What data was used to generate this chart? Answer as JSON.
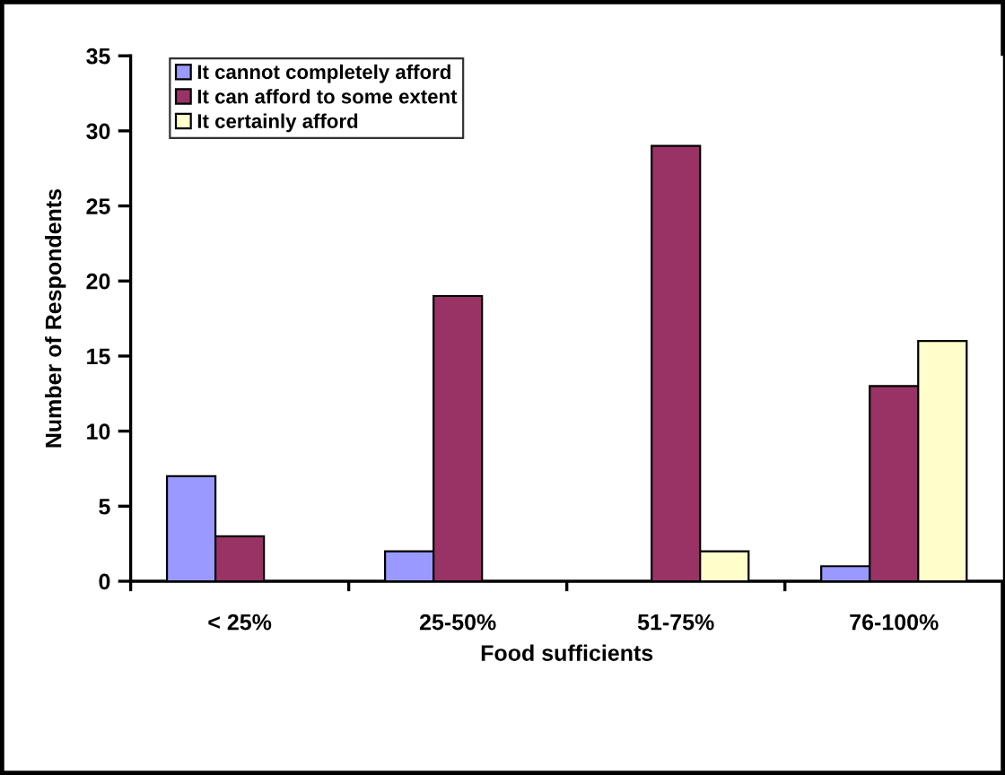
{
  "chart_data": {
    "type": "bar",
    "xlabel": "Food sufficients",
    "ylabel": "Number of Respondents",
    "categories": [
      "< 25%",
      "25-50%",
      "51-75%",
      "76-100%"
    ],
    "series": [
      {
        "name": "It cannot completely afford",
        "color": "#9999ff",
        "values": [
          7,
          2,
          null,
          1
        ]
      },
      {
        "name": "It can afford to some extent",
        "color": "#993366",
        "values": [
          3,
          19,
          29,
          13
        ]
      },
      {
        "name": "It certainly afford",
        "color": "#ffffcc",
        "values": [
          null,
          null,
          2,
          16
        ]
      }
    ],
    "ylim": [
      0,
      35
    ],
    "yticks": [
      0,
      5,
      10,
      15,
      20,
      25,
      30,
      35
    ],
    "grid": false,
    "legend": "top left"
  }
}
